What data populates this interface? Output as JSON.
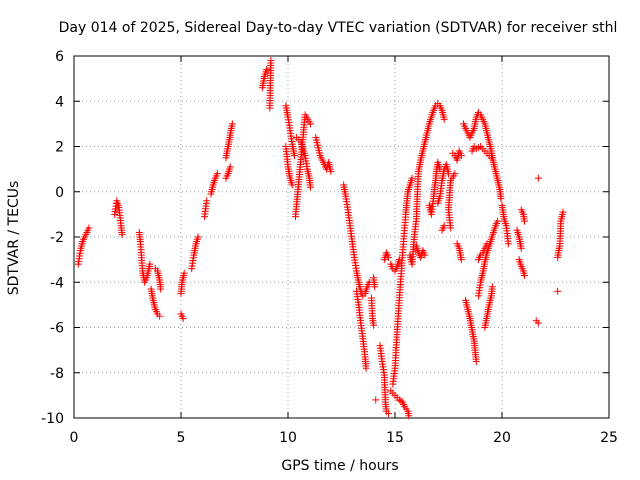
{
  "chart_data": {
    "type": "scatter",
    "title": "Day 014 of 2025, Sidereal Day-to-day VTEC variation (SDTVAR) for receiver sthl",
    "xlabel": "GPS time / hours",
    "ylabel": "SDTVAR / TECUs",
    "xlim": [
      0,
      25
    ],
    "ylim": [
      -10,
      6
    ],
    "xticks": [
      "0",
      "5",
      "10",
      "15",
      "20",
      "25"
    ],
    "yticks": [
      "-10",
      "-8",
      "-6",
      "-4",
      "-2",
      "0",
      "2",
      "4",
      "6"
    ],
    "grid": true,
    "marker": "+",
    "marker_color": "#ff0000",
    "tracks": [
      [
        [
          0.2,
          -3.2
        ],
        [
          0.3,
          -2.6
        ],
        [
          0.4,
          -2.2
        ],
        [
          0.5,
          -2.0
        ],
        [
          0.6,
          -1.8
        ],
        [
          0.7,
          -1.6
        ]
      ],
      [
        [
          1.9,
          -1.0
        ],
        [
          2.0,
          -0.4
        ],
        [
          2.1,
          -0.7
        ],
        [
          2.2,
          -1.5
        ],
        [
          2.25,
          -1.9
        ]
      ],
      [
        [
          3.05,
          -1.8
        ],
        [
          3.1,
          -2.2
        ],
        [
          3.15,
          -2.8
        ],
        [
          3.2,
          -3.5
        ],
        [
          3.3,
          -4.0
        ],
        [
          3.4,
          -3.8
        ],
        [
          3.55,
          -3.2
        ]
      ],
      [
        [
          3.6,
          -4.3
        ],
        [
          3.7,
          -4.8
        ],
        [
          3.8,
          -5.2
        ],
        [
          3.9,
          -5.4
        ],
        [
          4.0,
          -5.5
        ]
      ],
      [
        [
          3.8,
          -3.4
        ],
        [
          3.9,
          -3.5
        ],
        [
          4.0,
          -3.9
        ],
        [
          4.05,
          -4.3
        ]
      ],
      [
        [
          5.0,
          -4.5
        ],
        [
          5.05,
          -4.0
        ],
        [
          5.1,
          -3.8
        ],
        [
          5.15,
          -3.6
        ]
      ],
      [
        [
          5.0,
          -5.4
        ],
        [
          5.1,
          -5.6
        ]
      ],
      [
        [
          5.5,
          -3.4
        ],
        [
          5.6,
          -2.8
        ],
        [
          5.7,
          -2.3
        ],
        [
          5.8,
          -2.0
        ]
      ],
      [
        [
          6.1,
          -1.1
        ],
        [
          6.2,
          -0.4
        ]
      ],
      [
        [
          6.4,
          -0.1
        ],
        [
          6.5,
          0.3
        ],
        [
          6.6,
          0.6
        ],
        [
          6.7,
          0.8
        ]
      ],
      [
        [
          7.1,
          1.5
        ],
        [
          7.2,
          2.0
        ],
        [
          7.3,
          2.5
        ],
        [
          7.35,
          2.8
        ],
        [
          7.4,
          3.0
        ]
      ],
      [
        [
          7.1,
          0.6
        ],
        [
          7.2,
          0.8
        ],
        [
          7.3,
          1.1
        ]
      ],
      [
        [
          8.8,
          4.6
        ],
        [
          8.9,
          5.1
        ],
        [
          9.0,
          5.4
        ]
      ],
      [
        [
          9.2,
          5.8
        ],
        [
          9.15,
          3.7
        ]
      ],
      [
        [
          9.9,
          3.8
        ],
        [
          10.0,
          3.3
        ],
        [
          10.1,
          2.7
        ],
        [
          10.2,
          2.1
        ],
        [
          10.3,
          1.6
        ]
      ],
      [
        [
          9.9,
          2.0
        ],
        [
          10.0,
          1.1
        ],
        [
          10.1,
          0.6
        ],
        [
          10.2,
          0.3
        ]
      ],
      [
        [
          10.4,
          2.4
        ],
        [
          10.6,
          2.2
        ],
        [
          10.8,
          1.6
        ],
        [
          10.9,
          1.0
        ],
        [
          11.0,
          0.6
        ],
        [
          11.05,
          0.2
        ]
      ],
      [
        [
          10.35,
          -1.1
        ],
        [
          10.8,
          3.4
        ],
        [
          11.05,
          3.0
        ]
      ],
      [
        [
          11.3,
          2.4
        ],
        [
          11.5,
          1.6
        ],
        [
          11.7,
          1.2
        ],
        [
          11.8,
          1.0
        ],
        [
          11.9,
          1.3
        ],
        [
          12.0,
          0.9
        ]
      ],
      [
        [
          12.6,
          0.3
        ],
        [
          12.7,
          -0.2
        ],
        [
          12.8,
          -0.8
        ],
        [
          12.9,
          -1.5
        ],
        [
          13.0,
          -2.2
        ],
        [
          13.1,
          -2.9
        ],
        [
          13.2,
          -3.5
        ],
        [
          13.3,
          -4.0
        ],
        [
          13.4,
          -4.4
        ],
        [
          13.5,
          -4.6
        ],
        [
          13.6,
          -4.5
        ],
        [
          13.7,
          -4.2
        ],
        [
          13.8,
          -4.0
        ]
      ],
      [
        [
          13.2,
          -4.4
        ],
        [
          13.3,
          -5.0
        ],
        [
          13.4,
          -5.8
        ],
        [
          13.5,
          -6.5
        ],
        [
          13.6,
          -7.3
        ],
        [
          13.65,
          -7.8
        ]
      ],
      [
        [
          13.9,
          -4.7
        ],
        [
          13.95,
          -5.6
        ],
        [
          14.0,
          -5.9
        ]
      ],
      [
        [
          14.0,
          -3.8
        ],
        [
          14.05,
          -4.2
        ]
      ],
      [
        [
          14.3,
          -6.8
        ],
        [
          14.4,
          -7.5
        ],
        [
          14.5,
          -8.1
        ],
        [
          14.55,
          -9.3
        ],
        [
          14.6,
          -9.7
        ],
        [
          14.7,
          -9.8
        ]
      ],
      [
        [
          14.1,
          -9.2
        ]
      ],
      [
        [
          14.5,
          -3.0
        ],
        [
          14.6,
          -2.7
        ],
        [
          14.7,
          -2.9
        ]
      ],
      [
        [
          14.8,
          -3.2
        ],
        [
          14.9,
          -3.4
        ],
        [
          15.0,
          -3.5
        ],
        [
          15.1,
          -3.3
        ],
        [
          15.2,
          -3.0
        ]
      ],
      [
        [
          14.8,
          -8.8
        ],
        [
          14.9,
          -8.9
        ],
        [
          15.0,
          -9.0
        ],
        [
          15.1,
          -9.1
        ],
        [
          15.2,
          -9.2
        ],
        [
          15.35,
          -9.3
        ],
        [
          15.45,
          -9.5
        ],
        [
          15.6,
          -9.7
        ],
        [
          15.65,
          -9.9
        ]
      ],
      [
        [
          14.9,
          -8.5
        ],
        [
          15.0,
          -7.8
        ],
        [
          15.05,
          -7.0
        ],
        [
          15.1,
          -6.2
        ],
        [
          15.15,
          -5.5
        ],
        [
          15.2,
          -4.8
        ],
        [
          15.25,
          -4.1
        ],
        [
          15.3,
          -3.5
        ],
        [
          15.35,
          -2.8
        ],
        [
          15.4,
          -2.2
        ],
        [
          15.45,
          -1.6
        ],
        [
          15.5,
          -1.0
        ],
        [
          15.55,
          -0.5
        ],
        [
          15.6,
          0.0
        ],
        [
          15.7,
          0.3
        ],
        [
          15.8,
          0.6
        ]
      ],
      [
        [
          15.7,
          -2.8
        ],
        [
          15.8,
          -3.2
        ],
        [
          15.9,
          -2.0
        ],
        [
          16.0,
          -1.2
        ],
        [
          16.05,
          0.0
        ],
        [
          16.1,
          0.9
        ],
        [
          16.2,
          1.4
        ],
        [
          16.3,
          1.8
        ],
        [
          16.4,
          2.2
        ],
        [
          16.5,
          2.6
        ],
        [
          16.6,
          3.0
        ],
        [
          16.7,
          3.3
        ],
        [
          16.8,
          3.6
        ],
        [
          16.9,
          3.8
        ],
        [
          17.0,
          3.9
        ],
        [
          17.1,
          3.8
        ],
        [
          17.2,
          3.6
        ],
        [
          17.3,
          3.2
        ]
      ],
      [
        [
          16.0,
          -2.4
        ],
        [
          16.1,
          -2.7
        ],
        [
          16.2,
          -2.9
        ],
        [
          16.3,
          -2.6
        ],
        [
          16.4,
          -2.8
        ]
      ],
      [
        [
          16.6,
          -0.6
        ],
        [
          16.7,
          -1.0
        ],
        [
          16.8,
          -0.3
        ],
        [
          16.85,
          0.2
        ],
        [
          16.9,
          0.5
        ],
        [
          16.95,
          1.0
        ],
        [
          17.0,
          1.3
        ],
        [
          17.1,
          1.0
        ]
      ],
      [
        [
          17.0,
          -0.5
        ],
        [
          17.1,
          -0.2
        ],
        [
          17.2,
          0.5
        ],
        [
          17.3,
          1.0
        ],
        [
          17.4,
          1.2
        ],
        [
          17.5,
          0.8
        ]
      ],
      [
        [
          17.7,
          1.7
        ],
        [
          17.8,
          1.6
        ],
        [
          17.9,
          1.4
        ],
        [
          18.0,
          1.8
        ],
        [
          18.1,
          1.6
        ]
      ],
      [
        [
          17.6,
          -1.6
        ],
        [
          17.5,
          -0.8
        ],
        [
          17.6,
          0.5
        ],
        [
          17.8,
          0.8
        ]
      ],
      [
        [
          17.2,
          -1.7
        ],
        [
          17.3,
          -1.5
        ]
      ],
      [
        [
          17.9,
          -2.3
        ],
        [
          18.0,
          -2.5
        ],
        [
          18.1,
          -3.0
        ]
      ],
      [
        [
          18.2,
          3.0
        ],
        [
          18.5,
          2.4
        ],
        [
          18.6,
          2.6
        ],
        [
          18.7,
          2.8
        ],
        [
          18.8,
          3.3
        ],
        [
          18.9,
          3.5
        ],
        [
          19.0,
          3.4
        ],
        [
          19.1,
          3.2
        ],
        [
          19.2,
          3.0
        ],
        [
          19.3,
          2.6
        ],
        [
          19.4,
          2.2
        ],
        [
          19.5,
          1.8
        ],
        [
          19.6,
          1.3
        ],
        [
          19.7,
          0.9
        ],
        [
          19.8,
          0.5
        ],
        [
          19.9,
          0.1
        ],
        [
          19.95,
          -0.3
        ]
      ],
      [
        [
          18.6,
          1.8
        ],
        [
          18.7,
          2.0
        ],
        [
          18.8,
          1.9
        ],
        [
          19.0,
          2.0
        ],
        [
          19.2,
          1.8
        ],
        [
          19.4,
          1.6
        ],
        [
          19.5,
          1.5
        ]
      ],
      [
        [
          18.3,
          -4.8
        ],
        [
          18.4,
          -5.2
        ],
        [
          18.5,
          -5.6
        ],
        [
          18.6,
          -6.1
        ],
        [
          18.7,
          -6.6
        ],
        [
          18.75,
          -7.1
        ],
        [
          18.8,
          -7.5
        ]
      ],
      [
        [
          18.9,
          -4.6
        ],
        [
          19.0,
          -4.0
        ],
        [
          19.1,
          -3.6
        ],
        [
          19.2,
          -3.1
        ],
        [
          19.3,
          -2.7
        ],
        [
          19.4,
          -2.4
        ],
        [
          19.5,
          -2.1
        ],
        [
          19.6,
          -1.8
        ],
        [
          19.7,
          -1.5
        ],
        [
          19.8,
          -1.3
        ]
      ],
      [
        [
          18.9,
          -3.0
        ],
        [
          19.0,
          -2.8
        ],
        [
          19.1,
          -2.7
        ],
        [
          19.2,
          -2.5
        ],
        [
          19.3,
          -2.3
        ]
      ],
      [
        [
          19.2,
          -6.0
        ],
        [
          19.3,
          -5.5
        ],
        [
          19.4,
          -5.0
        ],
        [
          19.5,
          -4.6
        ],
        [
          19.55,
          -4.2
        ]
      ],
      [
        [
          20.0,
          -0.6
        ],
        [
          20.05,
          -0.9
        ],
        [
          20.1,
          -1.2
        ],
        [
          20.2,
          -1.5
        ],
        [
          20.3,
          -2.3
        ]
      ],
      [
        [
          20.9,
          -0.8
        ],
        [
          21.0,
          -1.0
        ],
        [
          21.05,
          -1.3
        ]
      ],
      [
        [
          20.7,
          -1.7
        ],
        [
          20.8,
          -2.0
        ],
        [
          20.9,
          -2.5
        ]
      ],
      [
        [
          20.8,
          -3.0
        ],
        [
          20.9,
          -3.3
        ],
        [
          21.0,
          -3.5
        ],
        [
          21.05,
          -3.7
        ]
      ],
      [
        [
          21.6,
          -5.7
        ],
        [
          21.7,
          -5.8
        ]
      ],
      [
        [
          21.7,
          0.6
        ]
      ],
      [
        [
          22.6,
          -2.9
        ],
        [
          22.65,
          -2.6
        ],
        [
          22.7,
          -2.4
        ],
        [
          22.75,
          -1.3
        ],
        [
          22.8,
          -1.1
        ],
        [
          22.85,
          -0.9
        ]
      ],
      [
        [
          22.6,
          -4.4
        ]
      ]
    ]
  }
}
